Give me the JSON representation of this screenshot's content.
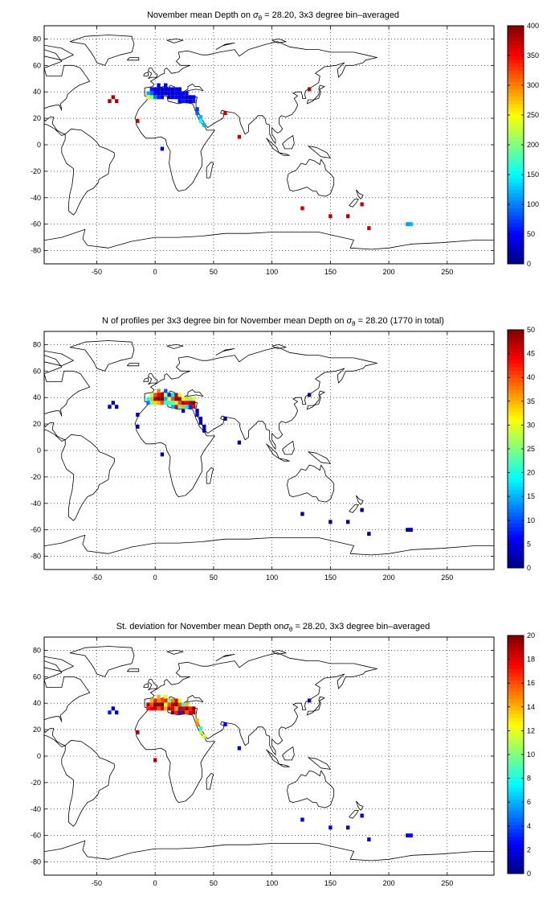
{
  "palette": {
    "land_outline": "#000000",
    "grid": "#000000",
    "background": "#ffffff",
    "colormap": "jet"
  },
  "chart_data": [
    {
      "type": "heatmap",
      "title_parts": [
        "November mean Depth on ",
        "σ",
        "θ",
        " = 28.20, 3x3 degree bin–averaged"
      ],
      "xlim": [
        -95,
        290
      ],
      "ylim": [
        -90,
        90
      ],
      "xticks": [
        -50,
        0,
        50,
        100,
        150,
        200,
        250
      ],
      "yticks": [
        -80,
        -60,
        -40,
        -20,
        0,
        20,
        40,
        60,
        80
      ],
      "grid": true,
      "colorbar": {
        "min": 0,
        "max": 400,
        "ticks": [
          0,
          50,
          100,
          150,
          200,
          250,
          300,
          350,
          400
        ]
      },
      "cells": [
        [
          -39,
          33,
          380
        ],
        [
          -33,
          33,
          380
        ],
        [
          -36,
          36,
          380
        ],
        [
          -15,
          18,
          370
        ],
        [
          -6,
          36,
          240
        ],
        [
          -6,
          39,
          120
        ],
        [
          -3,
          36,
          200
        ],
        [
          -3,
          39,
          90
        ],
        [
          -3,
          42,
          60
        ],
        [
          0,
          36,
          100
        ],
        [
          0,
          39,
          40
        ],
        [
          0,
          42,
          40
        ],
        [
          3,
          36,
          60
        ],
        [
          3,
          39,
          30
        ],
        [
          3,
          42,
          30
        ],
        [
          3,
          45,
          40
        ],
        [
          6,
          36,
          50
        ],
        [
          6,
          39,
          30
        ],
        [
          6,
          42,
          30
        ],
        [
          9,
          39,
          35
        ],
        [
          9,
          42,
          30
        ],
        [
          9,
          45,
          40
        ],
        [
          12,
          36,
          30
        ],
        [
          12,
          39,
          35
        ],
        [
          12,
          42,
          40
        ],
        [
          15,
          36,
          30
        ],
        [
          15,
          39,
          35
        ],
        [
          15,
          42,
          40
        ],
        [
          18,
          36,
          50
        ],
        [
          18,
          39,
          40
        ],
        [
          18,
          42,
          45
        ],
        [
          21,
          33,
          45
        ],
        [
          21,
          36,
          30
        ],
        [
          21,
          39,
          35
        ],
        [
          21,
          42,
          40
        ],
        [
          24,
          33,
          60
        ],
        [
          24,
          36,
          40
        ],
        [
          24,
          39,
          45
        ],
        [
          27,
          33,
          40
        ],
        [
          27,
          36,
          30
        ],
        [
          27,
          39,
          45
        ],
        [
          30,
          33,
          40
        ],
        [
          30,
          36,
          30
        ],
        [
          33,
          33,
          60
        ],
        [
          33,
          36,
          50
        ],
        [
          36,
          27,
          70
        ],
        [
          36,
          24,
          90
        ],
        [
          39,
          21,
          120
        ],
        [
          39,
          18,
          150
        ],
        [
          42,
          15,
          120
        ],
        [
          6,
          -3,
          40
        ],
        [
          60,
          24,
          370
        ],
        [
          72,
          6,
          370
        ],
        [
          132,
          42,
          380
        ],
        [
          126,
          -48,
          370
        ],
        [
          150,
          -54,
          380
        ],
        [
          165,
          -54,
          380
        ],
        [
          177,
          -45,
          370
        ],
        [
          183,
          -63,
          370
        ],
        [
          216,
          -60,
          110
        ],
        [
          219,
          -60,
          120
        ]
      ]
    },
    {
      "type": "heatmap",
      "title_parts": [
        "N of profiles per 3x3 degree bin for November mean Depth on ",
        "σ",
        "θ",
        " = 28.20 (1770 in total)"
      ],
      "xlim": [
        -95,
        290
      ],
      "ylim": [
        -90,
        90
      ],
      "xticks": [
        -50,
        0,
        50,
        100,
        150,
        200,
        250
      ],
      "yticks": [
        -80,
        -60,
        -40,
        -20,
        0,
        20,
        40,
        60,
        80
      ],
      "grid": true,
      "colorbar": {
        "min": 0,
        "max": 50,
        "ticks": [
          0,
          5,
          10,
          15,
          20,
          25,
          30,
          35,
          40,
          45,
          50
        ]
      },
      "cells": [
        [
          -39,
          33,
          3
        ],
        [
          -33,
          33,
          3
        ],
        [
          -36,
          36,
          2
        ],
        [
          -15,
          27,
          3
        ],
        [
          -15,
          18,
          2
        ],
        [
          -6,
          36,
          12
        ],
        [
          -6,
          39,
          20
        ],
        [
          -3,
          36,
          25
        ],
        [
          -3,
          39,
          35
        ],
        [
          -3,
          42,
          28
        ],
        [
          0,
          36,
          33
        ],
        [
          0,
          39,
          48
        ],
        [
          0,
          42,
          40
        ],
        [
          3,
          36,
          35
        ],
        [
          3,
          39,
          50
        ],
        [
          3,
          42,
          45
        ],
        [
          3,
          45,
          38
        ],
        [
          6,
          36,
          40
        ],
        [
          6,
          39,
          50
        ],
        [
          6,
          42,
          48
        ],
        [
          9,
          36,
          22
        ],
        [
          9,
          39,
          15
        ],
        [
          9,
          42,
          28
        ],
        [
          9,
          45,
          10
        ],
        [
          12,
          36,
          20
        ],
        [
          12,
          39,
          30
        ],
        [
          12,
          42,
          8
        ],
        [
          15,
          33,
          15
        ],
        [
          15,
          36,
          24
        ],
        [
          15,
          39,
          40
        ],
        [
          15,
          42,
          18
        ],
        [
          18,
          33,
          45
        ],
        [
          18,
          36,
          28
        ],
        [
          18,
          39,
          50
        ],
        [
          18,
          42,
          46
        ],
        [
          21,
          33,
          22
        ],
        [
          21,
          36,
          40
        ],
        [
          21,
          39,
          48
        ],
        [
          21,
          42,
          30
        ],
        [
          24,
          30,
          5
        ],
        [
          24,
          33,
          35
        ],
        [
          24,
          36,
          49
        ],
        [
          24,
          39,
          30
        ],
        [
          27,
          33,
          18
        ],
        [
          27,
          36,
          45
        ],
        [
          27,
          39,
          33
        ],
        [
          30,
          33,
          8
        ],
        [
          30,
          36,
          48
        ],
        [
          30,
          39,
          25
        ],
        [
          33,
          33,
          45
        ],
        [
          33,
          36,
          50
        ],
        [
          33,
          39,
          30
        ],
        [
          36,
          30,
          3
        ],
        [
          36,
          27,
          5
        ],
        [
          39,
          24,
          4
        ],
        [
          39,
          21,
          3
        ],
        [
          42,
          18,
          3
        ],
        [
          42,
          15,
          3
        ],
        [
          6,
          -3,
          2
        ],
        [
          60,
          24,
          2
        ],
        [
          72,
          6,
          2
        ],
        [
          132,
          42,
          2
        ],
        [
          126,
          -48,
          1
        ],
        [
          150,
          -54,
          1
        ],
        [
          165,
          -54,
          1
        ],
        [
          177,
          -45,
          1
        ],
        [
          183,
          -63,
          1
        ],
        [
          216,
          -60,
          2
        ],
        [
          219,
          -60,
          2
        ]
      ]
    },
    {
      "type": "heatmap",
      "title_parts": [
        "St. deviation for November mean Depth on",
        "σ",
        "θ",
        " = 28.20, 3x3 degree bin–averaged"
      ],
      "xlim": [
        -95,
        290
      ],
      "ylim": [
        -90,
        90
      ],
      "xticks": [
        -50,
        0,
        50,
        100,
        150,
        200,
        250
      ],
      "yticks": [
        -80,
        -60,
        -40,
        -20,
        0,
        20,
        40,
        60,
        80
      ],
      "grid": true,
      "colorbar": {
        "min": 0,
        "max": 20,
        "ticks": [
          0,
          2,
          4,
          6,
          8,
          10,
          12,
          14,
          16,
          18,
          20
        ]
      },
      "cells": [
        [
          -39,
          33,
          3
        ],
        [
          -33,
          33,
          2
        ],
        [
          -36,
          36,
          2
        ],
        [
          -15,
          18,
          19
        ],
        [
          -6,
          36,
          17
        ],
        [
          -6,
          39,
          19
        ],
        [
          -3,
          36,
          18
        ],
        [
          -3,
          39,
          16
        ],
        [
          -3,
          42,
          14
        ],
        [
          0,
          36,
          19
        ],
        [
          0,
          39,
          20
        ],
        [
          0,
          42,
          17
        ],
        [
          3,
          36,
          16
        ],
        [
          3,
          39,
          20
        ],
        [
          3,
          42,
          15
        ],
        [
          3,
          45,
          14
        ],
        [
          6,
          36,
          18
        ],
        [
          6,
          39,
          20
        ],
        [
          6,
          42,
          16
        ],
        [
          9,
          36,
          14
        ],
        [
          9,
          39,
          12
        ],
        [
          9,
          42,
          17
        ],
        [
          9,
          45,
          12
        ],
        [
          12,
          36,
          19
        ],
        [
          12,
          39,
          16
        ],
        [
          12,
          42,
          10
        ],
        [
          15,
          33,
          20
        ],
        [
          15,
          36,
          18
        ],
        [
          15,
          39,
          19
        ],
        [
          15,
          42,
          15
        ],
        [
          18,
          33,
          17
        ],
        [
          18,
          36,
          14
        ],
        [
          18,
          39,
          20
        ],
        [
          18,
          42,
          18
        ],
        [
          21,
          33,
          3
        ],
        [
          21,
          36,
          19
        ],
        [
          21,
          39,
          16
        ],
        [
          21,
          42,
          12
        ],
        [
          24,
          33,
          20
        ],
        [
          24,
          36,
          18
        ],
        [
          24,
          39,
          8
        ],
        [
          27,
          33,
          16
        ],
        [
          27,
          36,
          20
        ],
        [
          27,
          39,
          14
        ],
        [
          30,
          33,
          18
        ],
        [
          30,
          36,
          17
        ],
        [
          33,
          33,
          19
        ],
        [
          33,
          36,
          20
        ],
        [
          36,
          27,
          14
        ],
        [
          36,
          24,
          15
        ],
        [
          39,
          21,
          8
        ],
        [
          39,
          18,
          11
        ],
        [
          42,
          15,
          12
        ],
        [
          0,
          -3,
          19
        ],
        [
          60,
          24,
          2
        ],
        [
          72,
          6,
          2
        ],
        [
          132,
          42,
          2
        ],
        [
          126,
          -48,
          2
        ],
        [
          150,
          -54,
          2
        ],
        [
          165,
          -54,
          2
        ],
        [
          177,
          -45,
          2
        ],
        [
          183,
          -63,
          2
        ],
        [
          216,
          -60,
          2
        ],
        [
          219,
          -60,
          2
        ]
      ]
    }
  ]
}
